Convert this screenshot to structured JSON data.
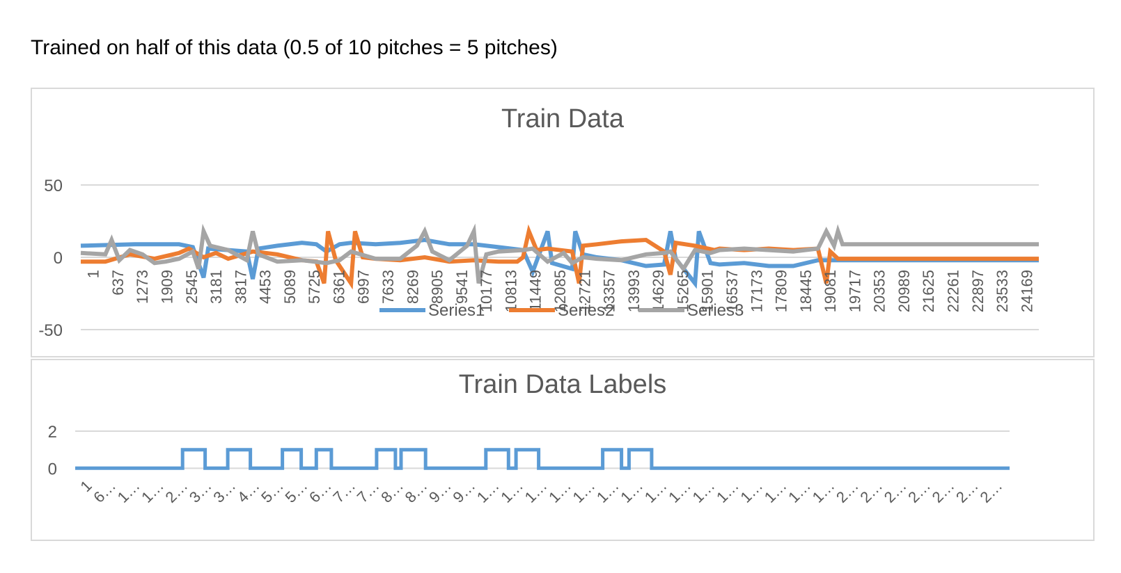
{
  "caption": "Trained on half of this data (0.5 of 10 pitches = 5 pitches)",
  "chart_data": [
    {
      "type": "line",
      "title": "Train Data",
      "xlabel": "",
      "ylabel": "",
      "ylim": [
        -50,
        50
      ],
      "yticks": [
        50,
        0,
        -50
      ],
      "grid": true,
      "legend": "bottom",
      "x_tick_labels": [
        "1",
        "637",
        "1273",
        "1909",
        "2545",
        "3181",
        "3817",
        "4453",
        "5089",
        "5725",
        "6361",
        "6997",
        "7633",
        "8269",
        "8905",
        "9541",
        "10177",
        "10813",
        "11449",
        "12085",
        "12721",
        "13357",
        "13993",
        "14629",
        "15265",
        "15901",
        "16537",
        "17173",
        "17809",
        "18445",
        "19081",
        "19717",
        "20353",
        "20989",
        "21625",
        "22261",
        "22897",
        "23533",
        "24169"
      ],
      "x_range": [
        1,
        24800
      ],
      "series": [
        {
          "name": "Series1",
          "color": "#5b9bd5",
          "points": [
            [
              1,
              8
            ],
            [
              1400,
              9
            ],
            [
              2545,
              9
            ],
            [
              2900,
              7
            ],
            [
              3181,
              -14
            ],
            [
              3300,
              6
            ],
            [
              3817,
              5
            ],
            [
              4300,
              4
            ],
            [
              4453,
              -15
            ],
            [
              4600,
              6
            ],
            [
              5089,
              8
            ],
            [
              5725,
              10
            ],
            [
              6100,
              9
            ],
            [
              6361,
              4
            ],
            [
              6700,
              9
            ],
            [
              6997,
              10
            ],
            [
              7633,
              9
            ],
            [
              8269,
              10
            ],
            [
              8905,
              12
            ],
            [
              9541,
              9
            ],
            [
              10177,
              9
            ],
            [
              10813,
              7
            ],
            [
              11449,
              5
            ],
            [
              11700,
              -10
            ],
            [
              12085,
              18
            ],
            [
              12200,
              -4
            ],
            [
              12721,
              -8
            ],
            [
              12800,
              18
            ],
            [
              13000,
              2
            ],
            [
              13357,
              0
            ],
            [
              13993,
              -2
            ],
            [
              14629,
              -6
            ],
            [
              15100,
              -5
            ],
            [
              15265,
              18
            ],
            [
              15400,
              -1
            ],
            [
              15901,
              -18
            ],
            [
              16000,
              18
            ],
            [
              16300,
              -4
            ],
            [
              16537,
              -5
            ],
            [
              17173,
              -4
            ],
            [
              17809,
              -6
            ],
            [
              18445,
              -6
            ],
            [
              19081,
              -2
            ],
            [
              19300,
              -2
            ],
            [
              19717,
              -2
            ],
            [
              24800,
              -2
            ]
          ]
        },
        {
          "name": "Series2",
          "color": "#ed7d31",
          "points": [
            [
              1,
              -3
            ],
            [
              637,
              -3
            ],
            [
              1273,
              2
            ],
            [
              1909,
              -1
            ],
            [
              2545,
              3
            ],
            [
              2800,
              6
            ],
            [
              3181,
              0
            ],
            [
              3500,
              3
            ],
            [
              3817,
              -1
            ],
            [
              4453,
              4
            ],
            [
              5089,
              2
            ],
            [
              5725,
              -2
            ],
            [
              6100,
              -3
            ],
            [
              6300,
              -18
            ],
            [
              6400,
              18
            ],
            [
              6600,
              -2
            ],
            [
              6997,
              -18
            ],
            [
              7100,
              18
            ],
            [
              7300,
              0
            ],
            [
              7633,
              -1
            ],
            [
              8269,
              -2
            ],
            [
              8905,
              0
            ],
            [
              9541,
              -3
            ],
            [
              10177,
              -2
            ],
            [
              10813,
              -3
            ],
            [
              11300,
              -3
            ],
            [
              11449,
              0
            ],
            [
              11600,
              18
            ],
            [
              11800,
              5
            ],
            [
              12085,
              6
            ],
            [
              12721,
              4
            ],
            [
              12900,
              -18
            ],
            [
              13000,
              8
            ],
            [
              13357,
              9
            ],
            [
              13993,
              11
            ],
            [
              14629,
              12
            ],
            [
              15100,
              4
            ],
            [
              15265,
              -12
            ],
            [
              15400,
              10
            ],
            [
              15901,
              8
            ],
            [
              16400,
              5
            ],
            [
              16537,
              6
            ],
            [
              17173,
              5
            ],
            [
              17809,
              6
            ],
            [
              18445,
              5
            ],
            [
              19081,
              6
            ],
            [
              19300,
              -18
            ],
            [
              19400,
              4
            ],
            [
              19600,
              -1
            ],
            [
              19717,
              -1
            ],
            [
              24800,
              -1
            ]
          ]
        },
        {
          "name": "Series3",
          "color": "#a5a5a5",
          "points": [
            [
              1,
              3
            ],
            [
              637,
              2
            ],
            [
              800,
              12
            ],
            [
              1000,
              -2
            ],
            [
              1273,
              5
            ],
            [
              1600,
              2
            ],
            [
              1909,
              -4
            ],
            [
              2200,
              -3
            ],
            [
              2545,
              -1
            ],
            [
              2900,
              4
            ],
            [
              3050,
              -8
            ],
            [
              3181,
              18
            ],
            [
              3350,
              8
            ],
            [
              3817,
              5
            ],
            [
              4300,
              -2
            ],
            [
              4453,
              18
            ],
            [
              4600,
              2
            ],
            [
              5089,
              -3
            ],
            [
              5725,
              -2
            ],
            [
              6361,
              -4
            ],
            [
              6700,
              -2
            ],
            [
              6997,
              4
            ],
            [
              7633,
              -1
            ],
            [
              8269,
              -1
            ],
            [
              8700,
              8
            ],
            [
              8905,
              18
            ],
            [
              9100,
              4
            ],
            [
              9541,
              -2
            ],
            [
              10000,
              8
            ],
            [
              10177,
              18
            ],
            [
              10300,
              -18
            ],
            [
              10500,
              2
            ],
            [
              10813,
              4
            ],
            [
              11449,
              5
            ],
            [
              11700,
              6
            ],
            [
              12085,
              -3
            ],
            [
              12500,
              3
            ],
            [
              12721,
              -4
            ],
            [
              13000,
              0
            ],
            [
              13357,
              -1
            ],
            [
              13993,
              -2
            ],
            [
              14629,
              2
            ],
            [
              15100,
              3
            ],
            [
              15265,
              4
            ],
            [
              15600,
              -8
            ],
            [
              15901,
              5
            ],
            [
              16300,
              3
            ],
            [
              16537,
              5
            ],
            [
              17173,
              6
            ],
            [
              17809,
              5
            ],
            [
              18445,
              4
            ],
            [
              19081,
              6
            ],
            [
              19300,
              18
            ],
            [
              19500,
              8
            ],
            [
              19600,
              18
            ],
            [
              19717,
              9
            ],
            [
              24800,
              9
            ]
          ]
        }
      ]
    },
    {
      "type": "line",
      "title": "Train Data Labels",
      "xlabel": "",
      "ylabel": "",
      "ylim": [
        -0.1,
        2
      ],
      "yticks": [
        2,
        0
      ],
      "grid": true,
      "x_tick_labels": [
        "1",
        "6…",
        "1…",
        "1…",
        "2…",
        "3…",
        "3…",
        "4…",
        "5…",
        "5…",
        "6…",
        "7…",
        "7…",
        "8…",
        "8…",
        "9…",
        "9…",
        "1…",
        "1…",
        "1…",
        "1…",
        "1…",
        "1…",
        "1…",
        "1…",
        "1…",
        "1…",
        "1…",
        "1…",
        "1…",
        "1…",
        "1…",
        "2…",
        "2…",
        "2…",
        "2…",
        "2…",
        "2…",
        "2…"
      ],
      "x_range": [
        1,
        24800
      ],
      "series": [
        {
          "name": "",
          "color": "#5b9bd5",
          "points": [
            [
              1,
              0
            ],
            [
              2850,
              0
            ],
            [
              2850,
              1
            ],
            [
              3450,
              1
            ],
            [
              3450,
              0
            ],
            [
              4050,
              0
            ],
            [
              4050,
              1
            ],
            [
              4650,
              1
            ],
            [
              4650,
              0
            ],
            [
              5500,
              0
            ],
            [
              5500,
              1
            ],
            [
              6000,
              1
            ],
            [
              6000,
              0
            ],
            [
              6400,
              0
            ],
            [
              6400,
              1
            ],
            [
              6800,
              1
            ],
            [
              6800,
              0
            ],
            [
              8000,
              0
            ],
            [
              8000,
              1
            ],
            [
              8500,
              1
            ],
            [
              8500,
              0
            ],
            [
              8650,
              0
            ],
            [
              8650,
              1
            ],
            [
              9300,
              1
            ],
            [
              9300,
              0
            ],
            [
              10900,
              0
            ],
            [
              10900,
              1
            ],
            [
              11500,
              1
            ],
            [
              11500,
              0
            ],
            [
              11700,
              0
            ],
            [
              11700,
              1
            ],
            [
              12300,
              1
            ],
            [
              12300,
              0
            ],
            [
              14000,
              0
            ],
            [
              14000,
              1
            ],
            [
              14500,
              1
            ],
            [
              14500,
              0
            ],
            [
              14700,
              0
            ],
            [
              14700,
              1
            ],
            [
              15300,
              1
            ],
            [
              15300,
              0
            ],
            [
              24800,
              0
            ]
          ]
        }
      ]
    }
  ]
}
